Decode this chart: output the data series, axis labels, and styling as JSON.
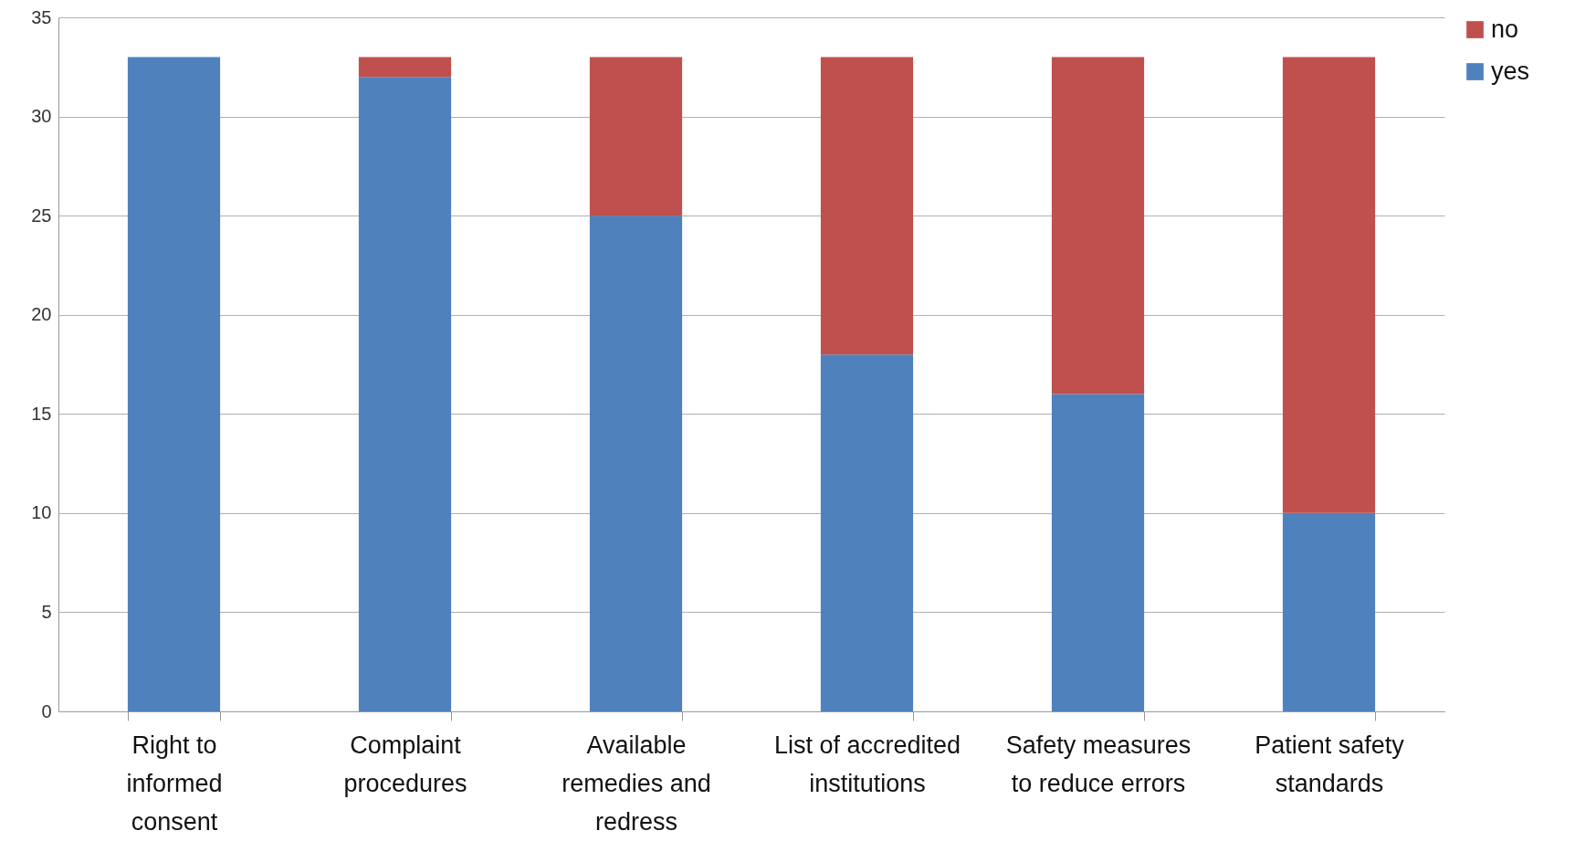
{
  "chart_data": {
    "type": "bar",
    "stacked": true,
    "categories": [
      "Right to informed consent",
      "Complaint procedures",
      "Available remedies and redress",
      "List of accredited institutions",
      "Safety measures to reduce errors",
      "Patient safety standards"
    ],
    "series": [
      {
        "name": "yes",
        "color": "#4f81bd",
        "values": [
          33,
          32,
          25,
          18,
          16,
          10
        ]
      },
      {
        "name": "no",
        "color": "#c0504d",
        "values": [
          0,
          1,
          8,
          15,
          17,
          23
        ]
      }
    ],
    "ylim": [
      0,
      35
    ],
    "yticks": [
      0,
      5,
      10,
      15,
      20,
      25,
      30,
      35
    ],
    "grid": "y",
    "legend": "right"
  }
}
